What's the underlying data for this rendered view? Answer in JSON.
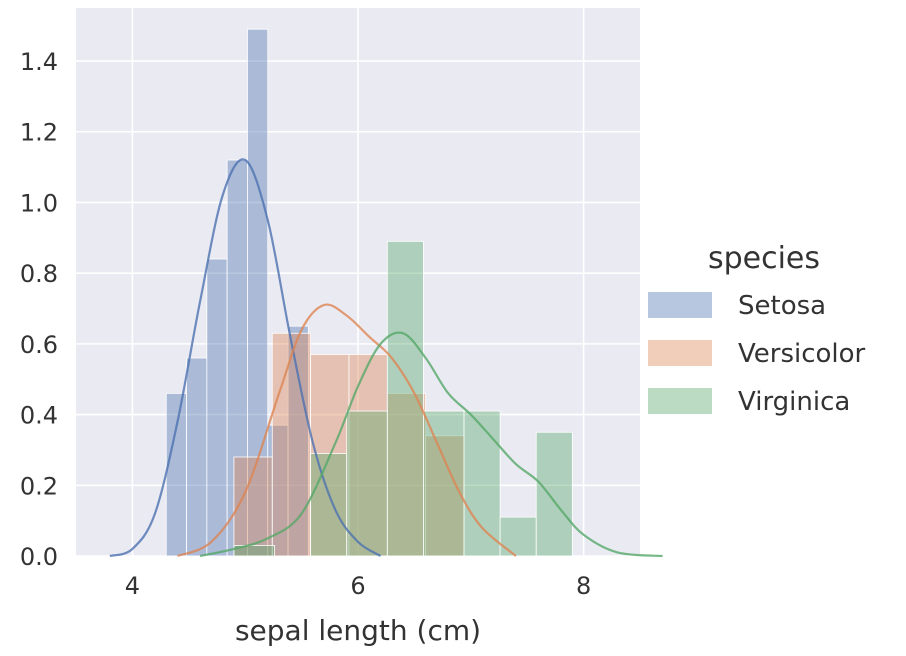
{
  "chart_data": {
    "type": "histogram",
    "title": "",
    "xlabel": "sepal length (cm)",
    "ylabel": "",
    "xlim": [
      3.5,
      8.5
    ],
    "ylim": [
      0,
      1.55
    ],
    "xticks": [
      4,
      6,
      8
    ],
    "yticks": [
      0.0,
      0.2,
      0.4,
      0.6,
      0.8,
      1.0,
      1.2,
      1.4
    ],
    "ytick_labels": [
      "0.0",
      "0.2",
      "0.4",
      "0.6",
      "0.8",
      "1.0",
      "1.2",
      "1.4"
    ],
    "grid": true,
    "background": "#eaeaf2",
    "legend": {
      "title": "species",
      "position": "right",
      "entries": [
        "Setosa",
        "Versicolor",
        "Virginica"
      ]
    },
    "series": [
      {
        "name": "Setosa",
        "color": "#4c72b0",
        "bins": [
          {
            "x0": 4.3,
            "x1": 4.48,
            "density": 0.46
          },
          {
            "x0": 4.48,
            "x1": 4.66,
            "density": 0.56
          },
          {
            "x0": 4.66,
            "x1": 4.84,
            "density": 0.84
          },
          {
            "x0": 4.84,
            "x1": 5.02,
            "density": 1.12
          },
          {
            "x0": 5.02,
            "x1": 5.2,
            "density": 1.49
          },
          {
            "x0": 5.2,
            "x1": 5.38,
            "density": 0.37
          },
          {
            "x0": 5.38,
            "x1": 5.56,
            "density": 0.65
          },
          {
            "x0": 5.56,
            "x1": 5.74,
            "density": 0.0
          }
        ],
        "kde": [
          [
            3.8,
            0.0
          ],
          [
            4.0,
            0.02
          ],
          [
            4.2,
            0.12
          ],
          [
            4.4,
            0.38
          ],
          [
            4.6,
            0.72
          ],
          [
            4.8,
            1.02
          ],
          [
            5.0,
            1.12
          ],
          [
            5.2,
            0.95
          ],
          [
            5.4,
            0.62
          ],
          [
            5.6,
            0.32
          ],
          [
            5.8,
            0.13
          ],
          [
            6.0,
            0.04
          ],
          [
            6.2,
            0.0
          ]
        ]
      },
      {
        "name": "Versicolor",
        "color": "#dd8452",
        "bins": [
          {
            "x0": 4.9,
            "x1": 5.24,
            "density": 0.28
          },
          {
            "x0": 5.24,
            "x1": 5.58,
            "density": 0.63
          },
          {
            "x0": 5.58,
            "x1": 5.92,
            "density": 0.57
          },
          {
            "x0": 5.92,
            "x1": 6.26,
            "density": 0.57
          },
          {
            "x0": 6.26,
            "x1": 6.6,
            "density": 0.46
          },
          {
            "x0": 6.6,
            "x1": 6.94,
            "density": 0.34
          }
        ],
        "kde": [
          [
            4.4,
            0.0
          ],
          [
            4.7,
            0.04
          ],
          [
            5.0,
            0.18
          ],
          [
            5.3,
            0.46
          ],
          [
            5.5,
            0.64
          ],
          [
            5.7,
            0.71
          ],
          [
            5.9,
            0.68
          ],
          [
            6.1,
            0.62
          ],
          [
            6.3,
            0.56
          ],
          [
            6.5,
            0.46
          ],
          [
            6.7,
            0.32
          ],
          [
            6.9,
            0.18
          ],
          [
            7.1,
            0.08
          ],
          [
            7.4,
            0.0
          ]
        ]
      },
      {
        "name": "Virginica",
        "color": "#55a868",
        "bins": [
          {
            "x0": 4.9,
            "x1": 5.26,
            "density": 0.03
          },
          {
            "x0": 5.58,
            "x1": 5.9,
            "density": 0.29
          },
          {
            "x0": 5.9,
            "x1": 6.26,
            "density": 0.41
          },
          {
            "x0": 6.26,
            "x1": 6.58,
            "density": 0.89
          },
          {
            "x0": 6.58,
            "x1": 6.94,
            "density": 0.41
          },
          {
            "x0": 6.94,
            "x1": 7.26,
            "density": 0.41
          },
          {
            "x0": 7.26,
            "x1": 7.58,
            "density": 0.11
          },
          {
            "x0": 7.58,
            "x1": 7.9,
            "density": 0.35
          }
        ],
        "kde": [
          [
            4.6,
            0.0
          ],
          [
            4.9,
            0.02
          ],
          [
            5.2,
            0.05
          ],
          [
            5.5,
            0.12
          ],
          [
            5.8,
            0.32
          ],
          [
            6.0,
            0.48
          ],
          [
            6.2,
            0.6
          ],
          [
            6.4,
            0.63
          ],
          [
            6.6,
            0.56
          ],
          [
            6.8,
            0.46
          ],
          [
            7.0,
            0.4
          ],
          [
            7.2,
            0.33
          ],
          [
            7.4,
            0.26
          ],
          [
            7.6,
            0.21
          ],
          [
            7.8,
            0.13
          ],
          [
            8.0,
            0.06
          ],
          [
            8.3,
            0.01
          ],
          [
            8.7,
            0.0
          ]
        ]
      }
    ]
  }
}
